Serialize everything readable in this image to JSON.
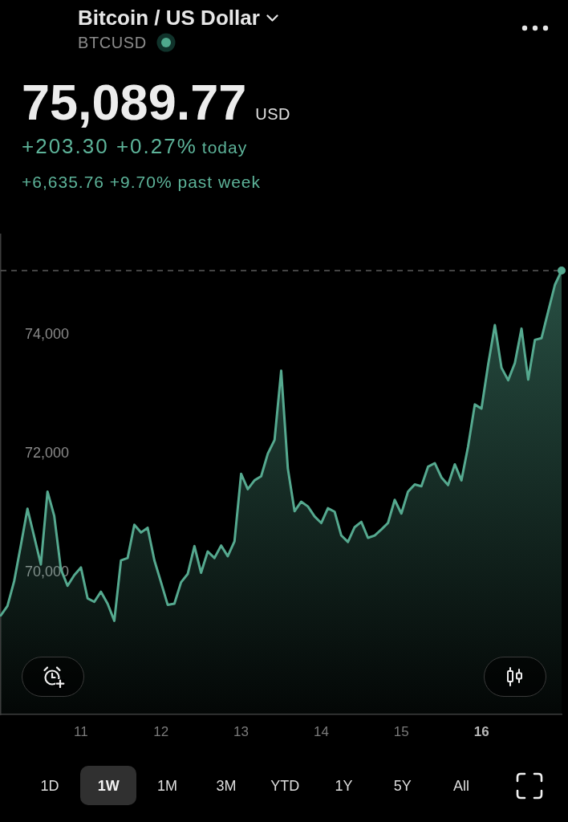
{
  "chart_data": {
    "type": "area",
    "title": "Bitcoin / US Dollar",
    "subtitle": "BTCUSD",
    "annotations": [
      "75,089.77",
      "USD",
      "+203.30 +0.27%",
      "today",
      "+6,635.76 +9.70% past week",
      "1D",
      "1W",
      "1M",
      "3M",
      "YTD",
      "1Y",
      "5Y",
      "All"
    ],
    "x": [
      10,
      10.083,
      10.167,
      10.25,
      10.333,
      10.417,
      10.5,
      10.583,
      10.667,
      10.75,
      10.833,
      10.917,
      11,
      11.083,
      11.167,
      11.25,
      11.333,
      11.417,
      11.5,
      11.583,
      11.667,
      11.75,
      11.833,
      11.917,
      12,
      12.083,
      12.167,
      12.25,
      12.333,
      12.417,
      12.5,
      12.583,
      12.667,
      12.75,
      12.833,
      12.917,
      13,
      13.083,
      13.167,
      13.25,
      13.333,
      13.417,
      13.5,
      13.583,
      13.667,
      13.75,
      13.833,
      13.917,
      14,
      14.083,
      14.167,
      14.25,
      14.333,
      14.417,
      14.5,
      14.583,
      14.667,
      14.75,
      14.833,
      14.917,
      15,
      15.083,
      15.167,
      15.25,
      15.333,
      15.417,
      15.5,
      15.583,
      15.667,
      15.75,
      15.833,
      15.917,
      16,
      16.083,
      16.167,
      16.25,
      16.333,
      16.417,
      16.5,
      16.583,
      16.667,
      16.75,
      16.833,
      16.917,
      17
    ],
    "series": [
      {
        "color": "#55a98f",
        "values": [
          69270,
          69430,
          69850,
          70450,
          71070,
          70600,
          70130,
          71360,
          70950,
          70050,
          69770,
          69950,
          70080,
          69560,
          69500,
          69670,
          69470,
          69180,
          70200,
          70240,
          70800,
          70670,
          70750,
          70200,
          69830,
          69450,
          69470,
          69830,
          69970,
          70440,
          69990,
          70350,
          70240,
          70450,
          70270,
          70520,
          71660,
          71400,
          71550,
          71620,
          72000,
          72230,
          73400,
          71750,
          71030,
          71190,
          71110,
          70940,
          70830,
          71080,
          71020,
          70620,
          70510,
          70760,
          70850,
          70580,
          70620,
          70720,
          70830,
          71220,
          70990,
          71360,
          71480,
          71450,
          71780,
          71840,
          71600,
          71470,
          71820,
          71550,
          72120,
          72830,
          72760,
          73500,
          74170,
          73450,
          73240,
          73530,
          74110,
          73250,
          73920,
          73950,
          74400,
          74850,
          75090
        ]
      }
    ],
    "xlim": [
      10,
      17
    ],
    "xticks": [
      11,
      12,
      13,
      14,
      15,
      16
    ],
    "ylim": [
      67600,
      75700
    ],
    "yticks": [
      {
        "value": 70000,
        "label": "70,000"
      },
      {
        "value": 72000,
        "label": "72,000"
      },
      {
        "value": 74000,
        "label": "74,000"
      }
    ],
    "ref_lines": [
      {
        "axis": "y",
        "value": 75090,
        "color": "#6e6e6e",
        "line_style": "dashed"
      }
    ]
  }
}
